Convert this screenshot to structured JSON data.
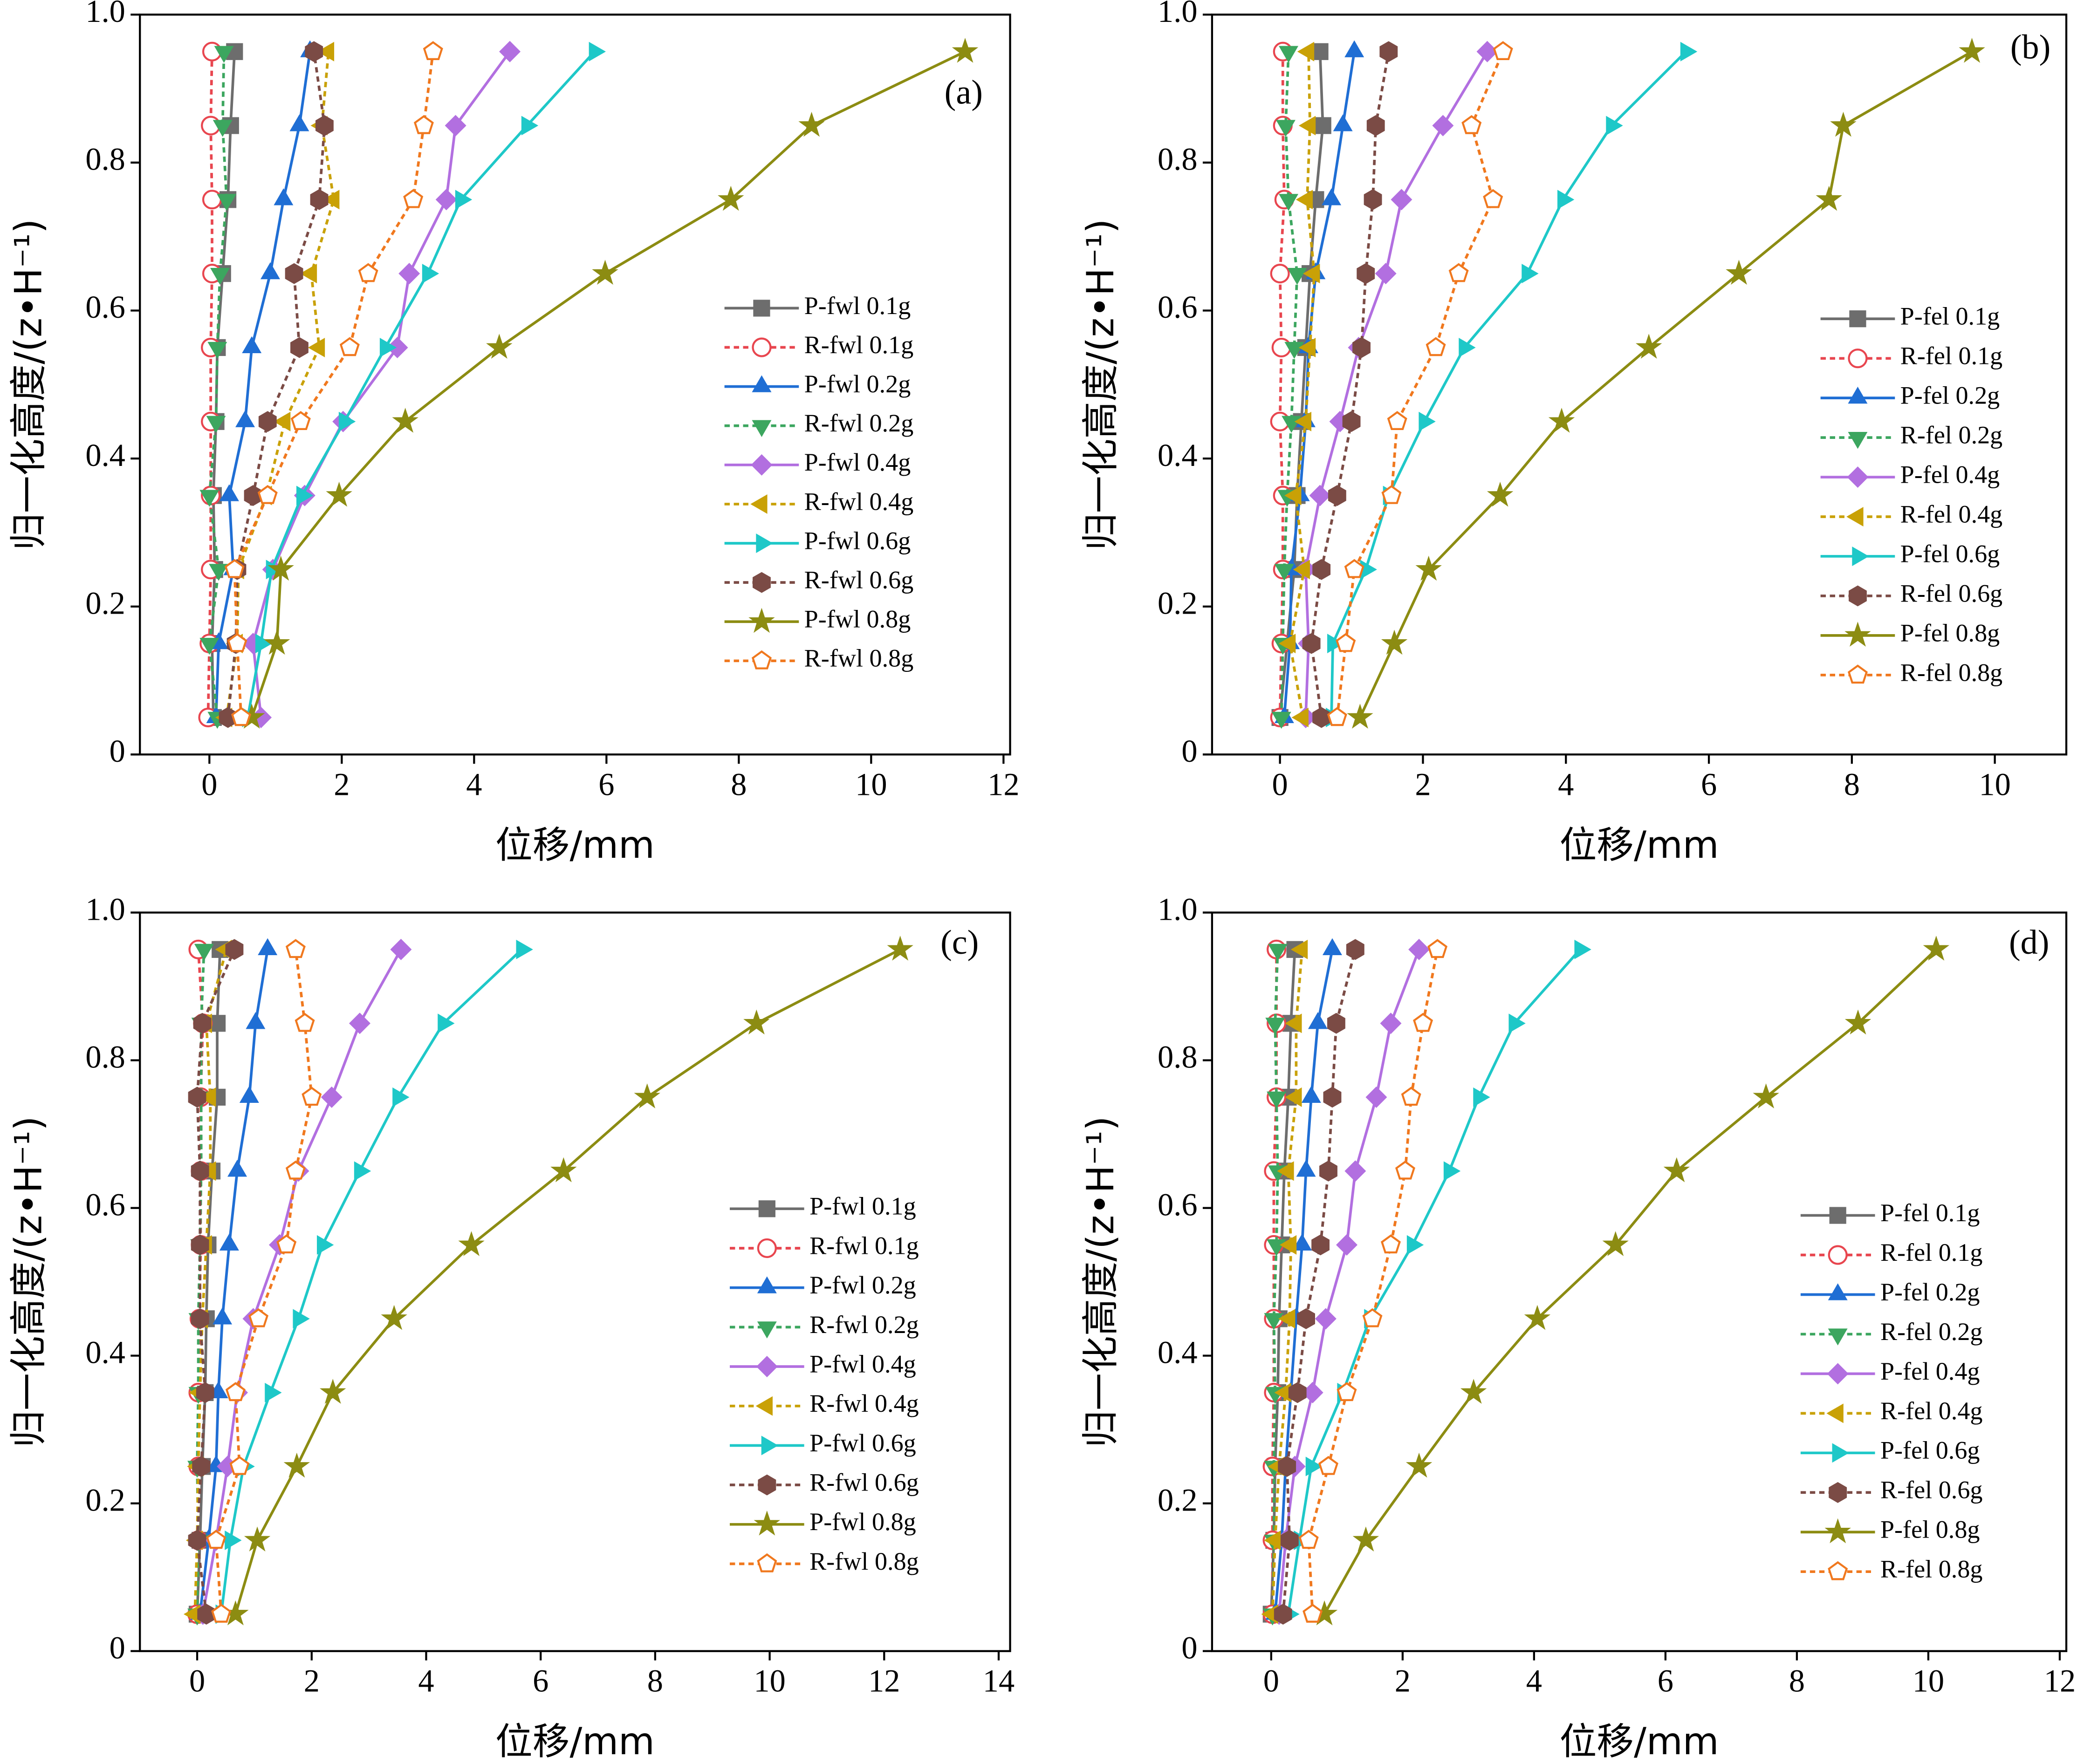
{
  "chart_data": [
    {
      "type": "line",
      "label": "(a)",
      "xlabel": "位移/mm",
      "ylabel": "归一化高度/(z•H⁻¹)",
      "xlim": [
        -1.05,
        12.1
      ],
      "xticks": [
        0,
        2,
        4,
        6,
        8,
        10,
        12
      ],
      "ylim": [
        0,
        1
      ],
      "yticks": [
        0,
        0.2,
        0.4,
        0.6,
        0.8,
        {
          "value": 1,
          "label": "1.0"
        }
      ],
      "y": [
        0.05,
        0.15,
        0.25,
        0.35,
        0.45,
        0.55,
        0.65,
        0.75,
        0.85,
        0.95
      ],
      "series": [
        {
          "name": "P-fwl 0.1g",
          "color": "#6d6d6d",
          "marker": "square",
          "filled": true,
          "dashed": false,
          "x": [
            0.06,
            0.04,
            0.08,
            0.06,
            0.1,
            0.12,
            0.2,
            0.28,
            0.32,
            0.38
          ]
        },
        {
          "name": "R-fwl 0.1g",
          "color": "#e8464f",
          "marker": "circle",
          "filled": false,
          "dashed": true,
          "x": [
            -0.02,
            0.0,
            0.02,
            0.02,
            0.02,
            0.02,
            0.04,
            0.04,
            0.02,
            0.04
          ]
        },
        {
          "name": "P-fwl 0.2g",
          "color": "#1f6ed4",
          "marker": "triangle-up",
          "filled": true,
          "dashed": false,
          "x": [
            0.1,
            0.14,
            0.36,
            0.3,
            0.54,
            0.64,
            0.92,
            1.12,
            1.36,
            1.52
          ]
        },
        {
          "name": "R-fwl 0.2g",
          "color": "#3ca65f",
          "marker": "triangle-down",
          "filled": true,
          "dashed": true,
          "x": [
            0.12,
            0.0,
            0.14,
            0.0,
            0.1,
            0.12,
            0.16,
            0.26,
            0.2,
            0.22
          ]
        },
        {
          "name": "P-fwl 0.4g",
          "color": "#b26fe0",
          "marker": "diamond",
          "filled": true,
          "dashed": false,
          "x": [
            0.78,
            0.66,
            0.96,
            1.44,
            2.02,
            2.84,
            3.02,
            3.58,
            3.72,
            4.54
          ]
        },
        {
          "name": "R-fwl 0.4g",
          "color": "#c9a106",
          "marker": "triangle-left",
          "filled": true,
          "dashed": true,
          "x": [
            0.26,
            0.42,
            0.44,
            0.86,
            1.14,
            1.66,
            1.54,
            1.88,
            1.7,
            1.8
          ]
        },
        {
          "name": "P-fwl 0.6g",
          "color": "#1ec8c8",
          "marker": "triangle-right",
          "filled": true,
          "dashed": false,
          "x": [
            0.58,
            0.78,
            0.94,
            1.4,
            2.04,
            2.66,
            3.3,
            3.8,
            4.8,
            5.82
          ]
        },
        {
          "name": "R-fwl 0.6g",
          "color": "#7b4b45",
          "marker": "hexagon",
          "filled": true,
          "dashed": true,
          "x": [
            0.28,
            0.4,
            0.42,
            0.66,
            0.88,
            1.36,
            1.28,
            1.66,
            1.74,
            1.58
          ]
        },
        {
          "name": "P-fwl 0.8g",
          "color": "#8c8c12",
          "marker": "star",
          "filled": true,
          "dashed": false,
          "x": [
            0.64,
            1.02,
            1.08,
            1.96,
            2.96,
            4.38,
            5.98,
            7.88,
            9.1,
            11.42
          ]
        },
        {
          "name": "R-fwl 0.8g",
          "color": "#f0781e",
          "marker": "pentagon",
          "filled": false,
          "dashed": true,
          "x": [
            0.48,
            0.42,
            0.38,
            0.88,
            1.38,
            2.12,
            2.4,
            3.08,
            3.24,
            3.38
          ]
        }
      ]
    },
    {
      "type": "line",
      "label": "(b)",
      "xlabel": "位移/mm",
      "ylabel": "归一化高度/(z•H⁻¹)",
      "xlim": [
        -0.95,
        11
      ],
      "xticks": [
        0,
        2,
        4,
        6,
        8,
        10
      ],
      "ylim": [
        0,
        1
      ],
      "yticks": [
        0,
        0.2,
        0.4,
        0.6,
        0.8,
        {
          "value": 1,
          "label": "1.0"
        }
      ],
      "y": [
        0.05,
        0.15,
        0.25,
        0.35,
        0.45,
        0.55,
        0.65,
        0.75,
        0.85,
        0.95
      ],
      "series": [
        {
          "name": "P-fel 0.1g",
          "color": "#6d6d6d",
          "marker": "square",
          "filled": true,
          "dashed": false,
          "x": [
            0.0,
            0.1,
            0.2,
            0.24,
            0.3,
            0.36,
            0.42,
            0.5,
            0.6,
            0.56
          ]
        },
        {
          "name": "R-fel 0.1g",
          "color": "#e8464f",
          "marker": "circle",
          "filled": false,
          "dashed": true,
          "x": [
            0.0,
            0.02,
            0.04,
            0.04,
            0.0,
            0.02,
            0.0,
            0.06,
            0.04,
            0.04
          ]
        },
        {
          "name": "P-fel 0.2g",
          "color": "#1f6ed4",
          "marker": "triangle-up",
          "filled": true,
          "dashed": false,
          "x": [
            0.06,
            0.14,
            0.16,
            0.28,
            0.36,
            0.4,
            0.5,
            0.72,
            0.88,
            1.04
          ]
        },
        {
          "name": "R-fel 0.2g",
          "color": "#3ca65f",
          "marker": "triangle-down",
          "filled": true,
          "dashed": true,
          "x": [
            0.02,
            0.04,
            0.06,
            0.1,
            0.16,
            0.2,
            0.24,
            0.12,
            0.08,
            0.12
          ]
        },
        {
          "name": "P-fel 0.4g",
          "color": "#b26fe0",
          "marker": "diamond",
          "filled": true,
          "dashed": false,
          "x": [
            0.36,
            0.4,
            0.36,
            0.56,
            0.84,
            1.1,
            1.48,
            1.7,
            2.28,
            2.9
          ]
        },
        {
          "name": "R-fel 0.4g",
          "color": "#c9a106",
          "marker": "triangle-left",
          "filled": true,
          "dashed": true,
          "x": [
            0.32,
            0.14,
            0.34,
            0.22,
            0.36,
            0.42,
            0.48,
            0.38,
            0.42,
            0.4
          ]
        },
        {
          "name": "P-fel 0.6g",
          "color": "#1ec8c8",
          "marker": "triangle-right",
          "filled": true,
          "dashed": false,
          "x": [
            0.72,
            0.74,
            1.2,
            1.52,
            2.02,
            2.58,
            3.46,
            3.96,
            4.64,
            5.68
          ]
        },
        {
          "name": "R-fel 0.6g",
          "color": "#7b4b45",
          "marker": "hexagon",
          "filled": true,
          "dashed": true,
          "x": [
            0.58,
            0.44,
            0.58,
            0.8,
            1.0,
            1.14,
            1.2,
            1.3,
            1.34,
            1.52
          ]
        },
        {
          "name": "P-fel 0.8g",
          "color": "#8c8c12",
          "marker": "star",
          "filled": true,
          "dashed": false,
          "x": [
            1.12,
            1.6,
            2.08,
            3.08,
            3.94,
            5.16,
            6.42,
            7.68,
            7.88,
            9.68
          ]
        },
        {
          "name": "R-fel 0.8g",
          "color": "#f0781e",
          "marker": "pentagon",
          "filled": false,
          "dashed": true,
          "x": [
            0.8,
            0.92,
            1.04,
            1.56,
            1.64,
            2.18,
            2.5,
            2.98,
            2.68,
            3.12
          ]
        }
      ]
    },
    {
      "type": "line",
      "label": "(c)",
      "xlabel": "位移/mm",
      "ylabel": "归一化高度/(z•H⁻¹)",
      "xlim": [
        -1,
        14.2
      ],
      "xticks": [
        0,
        2,
        4,
        6,
        8,
        10,
        12,
        14
      ],
      "ylim": [
        0,
        1
      ],
      "yticks": [
        0,
        0.2,
        0.4,
        0.6,
        0.8,
        {
          "value": 1,
          "label": "1.0"
        }
      ],
      "y": [
        0.05,
        0.15,
        0.25,
        0.35,
        0.45,
        0.55,
        0.65,
        0.75,
        0.85,
        0.95
      ],
      "series": [
        {
          "name": "P-fwl 0.1g",
          "color": "#6d6d6d",
          "marker": "square",
          "filled": true,
          "dashed": false,
          "x": [
            0.0,
            0.05,
            0.09,
            0.14,
            0.16,
            0.19,
            0.26,
            0.35,
            0.35,
            0.4
          ]
        },
        {
          "name": "R-fwl 0.1g",
          "color": "#e8464f",
          "marker": "circle",
          "filled": false,
          "dashed": true,
          "x": [
            0.0,
            0.02,
            0.02,
            0.02,
            0.04,
            0.06,
            0.06,
            0.06,
            0.1,
            0.02
          ]
        },
        {
          "name": "P-fwl 0.2g",
          "color": "#1f6ed4",
          "marker": "triangle-up",
          "filled": true,
          "dashed": false,
          "x": [
            0.05,
            0.2,
            0.33,
            0.37,
            0.44,
            0.56,
            0.7,
            0.91,
            1.02,
            1.23
          ]
        },
        {
          "name": "R-fwl 0.2g",
          "color": "#3ca65f",
          "marker": "triangle-down",
          "filled": true,
          "dashed": true,
          "x": [
            0.0,
            0.02,
            0.0,
            0.02,
            0.02,
            0.05,
            0.07,
            0.07,
            0.07,
            0.12
          ]
        },
        {
          "name": "P-fwl 0.4g",
          "color": "#b26fe0",
          "marker": "diamond",
          "filled": true,
          "dashed": false,
          "x": [
            0.1,
            0.33,
            0.53,
            0.7,
            0.98,
            1.44,
            1.77,
            2.35,
            2.84,
            3.56
          ]
        },
        {
          "name": "R-fwl 0.4g",
          "color": "#c9a106",
          "marker": "triangle-left",
          "filled": true,
          "dashed": true,
          "x": [
            -0.04,
            0.0,
            0.02,
            0.05,
            0.09,
            0.16,
            0.23,
            0.23,
            0.16,
            0.51
          ]
        },
        {
          "name": "P-fwl 0.6g",
          "color": "#1ec8c8",
          "marker": "triangle-right",
          "filled": true,
          "dashed": false,
          "x": [
            0.42,
            0.58,
            0.81,
            1.28,
            1.77,
            2.19,
            2.84,
            3.51,
            4.3,
            5.67
          ]
        },
        {
          "name": "R-fwl 0.6g",
          "color": "#7b4b45",
          "marker": "hexagon",
          "filled": true,
          "dashed": true,
          "x": [
            0.16,
            0.0,
            0.07,
            0.14,
            0.05,
            0.05,
            0.05,
            0.0,
            0.09,
            0.65
          ]
        },
        {
          "name": "P-fwl 0.8g",
          "color": "#8c8c12",
          "marker": "star",
          "filled": true,
          "dashed": false,
          "x": [
            0.67,
            1.05,
            1.74,
            2.37,
            3.44,
            4.79,
            6.4,
            7.86,
            9.77,
            12.28
          ]
        },
        {
          "name": "R-fwl 0.8g",
          "color": "#f0781e",
          "marker": "pentagon",
          "filled": false,
          "dashed": true,
          "x": [
            0.42,
            0.33,
            0.74,
            0.67,
            1.07,
            1.56,
            1.72,
            2.0,
            1.88,
            1.72
          ]
        }
      ]
    },
    {
      "type": "line",
      "label": "(d)",
      "xlabel": "位移/mm",
      "ylabel": "归一化高度/(z•H⁻¹)",
      "xlim": [
        -0.9,
        12.1
      ],
      "xticks": [
        0,
        2,
        4,
        6,
        8,
        10,
        12
      ],
      "ylim": [
        0,
        1
      ],
      "yticks": [
        0,
        0.2,
        0.4,
        0.6,
        0.8,
        {
          "value": 1,
          "label": "1.0"
        }
      ],
      "y": [
        0.05,
        0.15,
        0.25,
        0.35,
        0.45,
        0.55,
        0.65,
        0.75,
        0.85,
        0.95
      ],
      "series": [
        {
          "name": "P-fel 0.1g",
          "color": "#6d6d6d",
          "marker": "square",
          "filled": true,
          "dashed": false,
          "x": [
            0.0,
            0.04,
            0.06,
            0.1,
            0.12,
            0.16,
            0.2,
            0.26,
            0.3,
            0.36
          ]
        },
        {
          "name": "R-fel 0.1g",
          "color": "#e8464f",
          "marker": "circle",
          "filled": false,
          "dashed": true,
          "x": [
            0.02,
            0.02,
            0.02,
            0.04,
            0.04,
            0.04,
            0.04,
            0.08,
            0.08,
            0.08
          ]
        },
        {
          "name": "P-fel 0.2g",
          "color": "#1f6ed4",
          "marker": "triangle-up",
          "filled": true,
          "dashed": false,
          "x": [
            0.06,
            0.16,
            0.22,
            0.3,
            0.38,
            0.47,
            0.53,
            0.61,
            0.71,
            0.93
          ]
        },
        {
          "name": "R-fel 0.2g",
          "color": "#3ca65f",
          "marker": "triangle-down",
          "filled": true,
          "dashed": true,
          "x": [
            0.02,
            0.04,
            0.04,
            0.06,
            0.04,
            0.08,
            0.1,
            0.08,
            0.06,
            0.1
          ]
        },
        {
          "name": "P-fel 0.4g",
          "color": "#b26fe0",
          "marker": "diamond",
          "filled": true,
          "dashed": false,
          "x": [
            0.12,
            0.22,
            0.36,
            0.63,
            0.83,
            1.15,
            1.28,
            1.6,
            1.82,
            2.25
          ]
        },
        {
          "name": "R-fel 0.4g",
          "color": "#c9a106",
          "marker": "triangle-left",
          "filled": true,
          "dashed": true,
          "x": [
            0.02,
            0.06,
            0.12,
            0.22,
            0.28,
            0.3,
            0.26,
            0.38,
            0.38,
            0.47
          ]
        },
        {
          "name": "P-fel 0.6g",
          "color": "#1ec8c8",
          "marker": "triangle-right",
          "filled": true,
          "dashed": false,
          "x": [
            0.26,
            0.43,
            0.61,
            1.09,
            1.5,
            2.15,
            2.71,
            3.16,
            3.7,
            4.7
          ]
        },
        {
          "name": "R-fel 0.6g",
          "color": "#7b4b45",
          "marker": "hexagon",
          "filled": true,
          "dashed": true,
          "x": [
            0.18,
            0.28,
            0.24,
            0.4,
            0.53,
            0.75,
            0.87,
            0.93,
            0.99,
            1.28
          ]
        },
        {
          "name": "P-fel 0.8g",
          "color": "#8c8c12",
          "marker": "star",
          "filled": true,
          "dashed": false,
          "x": [
            0.81,
            1.44,
            2.25,
            3.08,
            4.05,
            5.24,
            6.17,
            7.53,
            8.93,
            10.12
          ]
        },
        {
          "name": "R-fel 0.8g",
          "color": "#f0781e",
          "marker": "pentagon",
          "filled": false,
          "dashed": true,
          "x": [
            0.63,
            0.57,
            0.87,
            1.15,
            1.54,
            1.82,
            2.04,
            2.13,
            2.31,
            2.53
          ]
        }
      ]
    }
  ]
}
